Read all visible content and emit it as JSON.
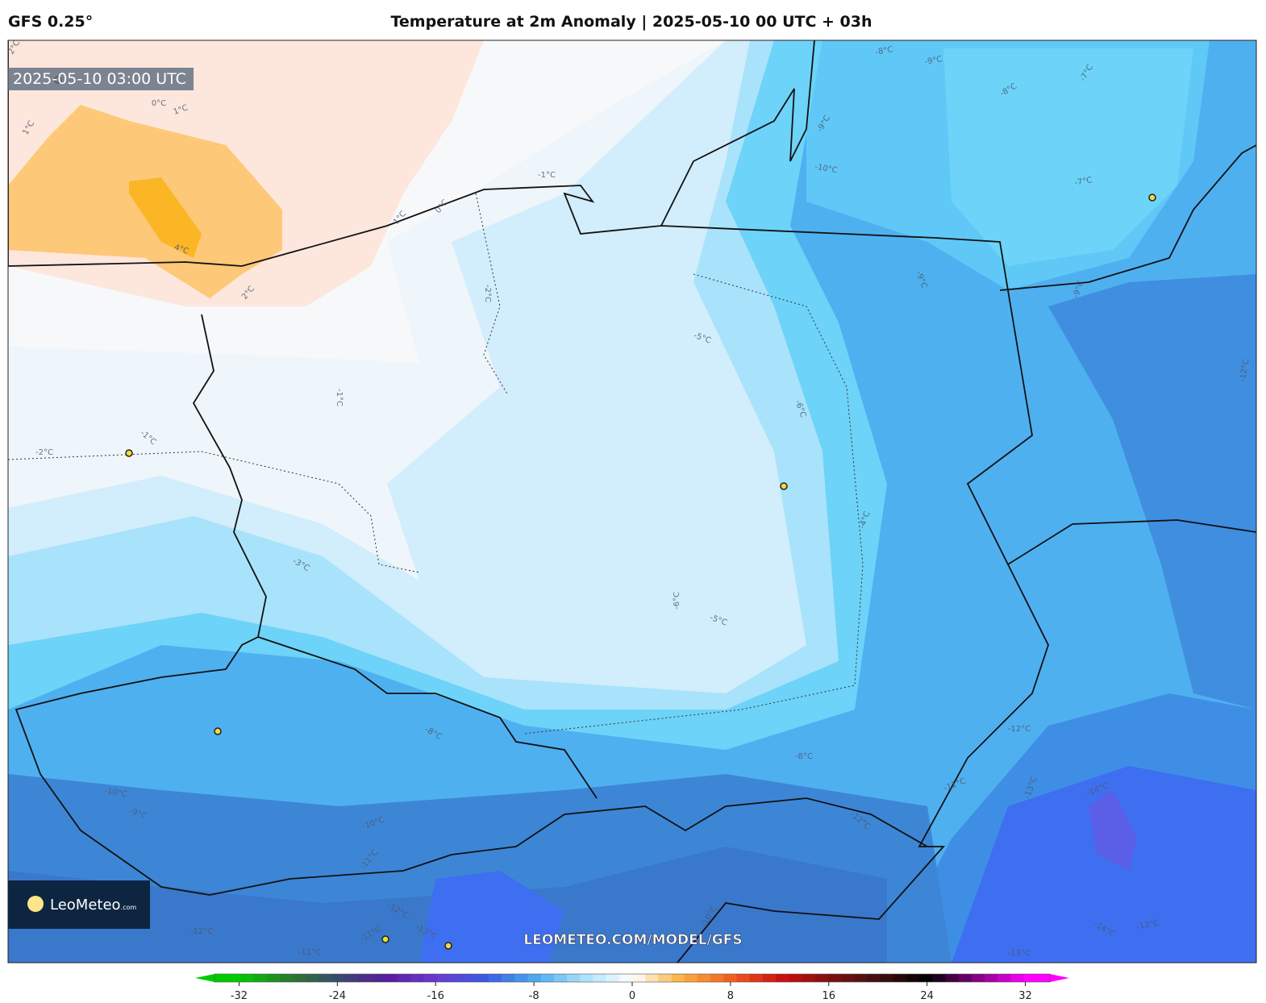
{
  "header": {
    "model": "GFS 0.25°",
    "title": "Temperature at 2m Anomaly | 2025-05-10 00 UTC + 03h"
  },
  "timestamp": "2025-05-10 03:00 UTC",
  "watermark": "LEOMETEO.COM/MODEL/GFS",
  "logo": {
    "name": "LeoMeteo",
    "suffix": ".com"
  },
  "contour_labels": [
    "2°C",
    "1°C",
    "0°C",
    "1°C",
    "-1°C",
    "0°C",
    "1°C",
    "4°C",
    "2°C",
    "-2°C",
    "-5°C",
    "-1°C",
    "-1°C",
    "-2°C",
    "-6°C",
    "-3°C",
    "-4°C",
    "-6°C",
    "-5°C",
    "-8°C",
    "-8°C",
    "-12°C",
    "-11°C",
    "-13°C",
    "-14°C",
    "-10°C",
    "-9°C",
    "-10°C",
    "-11°C",
    "-12°C",
    "-12°C",
    "-13°C",
    "-11°C",
    "-12°C",
    "-11°C",
    "-10°C",
    "-14°C",
    "-13°C",
    "-13°C",
    "-8°C",
    "-9°C",
    "-8°C",
    "-7°C",
    "-9°C",
    "-10°C",
    "-7°C",
    "-9°C",
    "-12°C",
    "-9°C"
  ],
  "colorbar": {
    "xlim": [
      -34,
      34
    ],
    "xticks": [
      -32,
      -24,
      -16,
      -8,
      0,
      8,
      16,
      24,
      32
    ],
    "stops": [
      -32,
      -28,
      -24,
      -20,
      -16,
      -12,
      -8,
      -4,
      0,
      4,
      8,
      12,
      16,
      20,
      24,
      28,
      32
    ],
    "colors": [
      "#00cc00",
      "#2a7a2a",
      "#3a4a6a",
      "#5a1aa0",
      "#6a3ad0",
      "#3a5ae0",
      "#4aa8ee",
      "#a8e2fb",
      "#ffffff",
      "#fbb040",
      "#f06020",
      "#d01010",
      "#801010",
      "#401010",
      "#000000",
      "#800080",
      "#ff00ff"
    ]
  }
}
